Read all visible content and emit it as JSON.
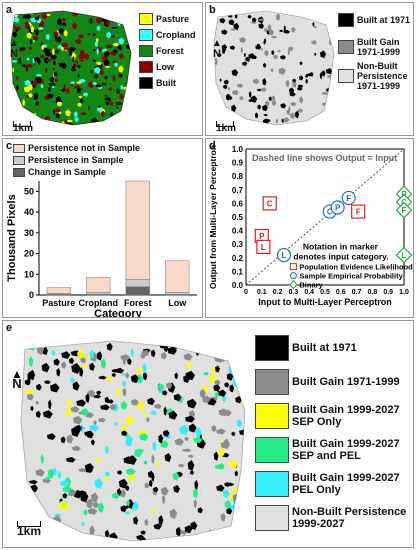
{
  "panels": {
    "a": {
      "label": "a",
      "legend": [
        {
          "name": "Pasture",
          "color": "#ffff00"
        },
        {
          "name": "Cropland",
          "color": "#33ffff"
        },
        {
          "name": "Forest",
          "color": "#118811"
        },
        {
          "name": "Low",
          "color": "#8b0000"
        },
        {
          "name": "Built",
          "color": "#000000"
        }
      ],
      "north": "N",
      "scale": "1km"
    },
    "b": {
      "label": "b",
      "legend": [
        {
          "name": "Built at 1971",
          "color": "#000000"
        },
        {
          "name": "Built Gain 1971-1999",
          "color": "#8c8c8c"
        },
        {
          "name": "Non-Built Persistence 1971-1999",
          "color": "#e0e0e0"
        }
      ],
      "north": "N",
      "scale": "1km"
    },
    "c": {
      "label": "c",
      "legend": [
        {
          "name": "Persistence not in Sample",
          "color": "#f8d8c8"
        },
        {
          "name": "Persistence in Sample",
          "color": "#cccccc"
        },
        {
          "name": "Change in Sample",
          "color": "#666666"
        }
      ]
    },
    "d": {
      "label": "d",
      "title": "Dashed line shows Output = Input",
      "notation_title": "Notation in marker denotes input category.",
      "notation": [
        {
          "name": "Population Evidence Likelihood",
          "shape": "square",
          "color": "#dd2222"
        },
        {
          "name": "Sample Empirical Probability",
          "shape": "circle",
          "color": "#1f6fc0"
        },
        {
          "name": "Binary",
          "shape": "diamond",
          "color": "#22aa44"
        }
      ]
    },
    "e": {
      "label": "e",
      "legend": [
        {
          "name": "Built at 1971",
          "color": "#000000"
        },
        {
          "name": "Built Gain 1971-1999",
          "color": "#8c8c8c"
        },
        {
          "name": "Built Gain 1999-2027 SEP Only",
          "color": "#ffff00"
        },
        {
          "name": "Built Gain 1999-2027 SEP and PEL",
          "color": "#22ee88"
        },
        {
          "name": "Built Gain 1999-2027 PEL Only",
          "color": "#33eeff"
        },
        {
          "name": "Non-Built Persistence 1999-2027",
          "color": "#e0e0e0"
        }
      ],
      "north": "N",
      "scale": "1km"
    }
  },
  "chart_data": [
    {
      "panel": "c",
      "type": "bar",
      "stacked": true,
      "categories": [
        "Pasture",
        "Cropland",
        "Forest",
        "Low"
      ],
      "series": [
        {
          "name": "Change in Sample",
          "values": [
            0.3,
            0.4,
            4.0,
            0.3
          ],
          "color": "#666666"
        },
        {
          "name": "Persistence in Sample",
          "values": [
            0.5,
            0.8,
            3.5,
            1.0
          ],
          "color": "#cccccc"
        },
        {
          "name": "Persistence not in Sample",
          "values": [
            2.7,
            7.3,
            47.5,
            15.2
          ],
          "color": "#f8d8c8"
        }
      ],
      "xlabel": "Category",
      "ylabel": "Thousand Pixels",
      "ylim": [
        0,
        55
      ],
      "yticks": [
        0,
        10,
        20,
        30,
        40,
        50
      ]
    },
    {
      "panel": "d",
      "type": "scatter",
      "xlabel": "Input to Multi-Layer Perceptron",
      "ylabel": "Output from Multi-Layer Perceptron",
      "xlim": [
        0,
        1
      ],
      "ylim": [
        0,
        1
      ],
      "ticks": [
        0,
        0.1,
        0.2,
        0.3,
        0.4,
        0.5,
        0.6,
        0.7,
        0.8,
        0.9,
        1
      ],
      "tick_labels": [
        "0",
        "0.1",
        "0.2",
        "0.3",
        "0.4",
        "0.5",
        "0.6",
        "0.7",
        "0.8",
        "0.9",
        "1.0"
      ],
      "ytick_labels": [
        "0.0",
        "0.1",
        "0.2",
        "0.3",
        "0.4",
        "0.5",
        "0.6",
        "0.7",
        "0.8",
        "0.9",
        "1.0"
      ],
      "reference_line": "y = x",
      "series": [
        {
          "name": "Population Evidence Likelihood",
          "shape": "square",
          "color": "#dd2222",
          "points": [
            {
              "x": 0.15,
              "y": 0.6,
              "label": "C"
            },
            {
              "x": 0.1,
              "y": 0.36,
              "label": "P"
            },
            {
              "x": 0.11,
              "y": 0.28,
              "label": "L"
            },
            {
              "x": 0.71,
              "y": 0.54,
              "label": "F"
            }
          ]
        },
        {
          "name": "Sample Empirical Probability",
          "shape": "circle",
          "color": "#1f6fc0",
          "points": [
            {
              "x": 0.24,
              "y": 0.22,
              "label": "L"
            },
            {
              "x": 0.53,
              "y": 0.54,
              "label": "C"
            },
            {
              "x": 0.58,
              "y": 0.57,
              "label": "P"
            },
            {
              "x": 0.65,
              "y": 0.64,
              "label": "F"
            }
          ]
        },
        {
          "name": "Binary",
          "shape": "diamond",
          "color": "#22aa44",
          "points": [
            {
              "x": 1.0,
              "y": 0.67,
              "label": "P"
            },
            {
              "x": 1.0,
              "y": 0.61,
              "label": "C"
            },
            {
              "x": 1.0,
              "y": 0.55,
              "label": "F"
            },
            {
              "x": 1.0,
              "y": 0.22,
              "label": "L"
            }
          ]
        }
      ]
    }
  ]
}
